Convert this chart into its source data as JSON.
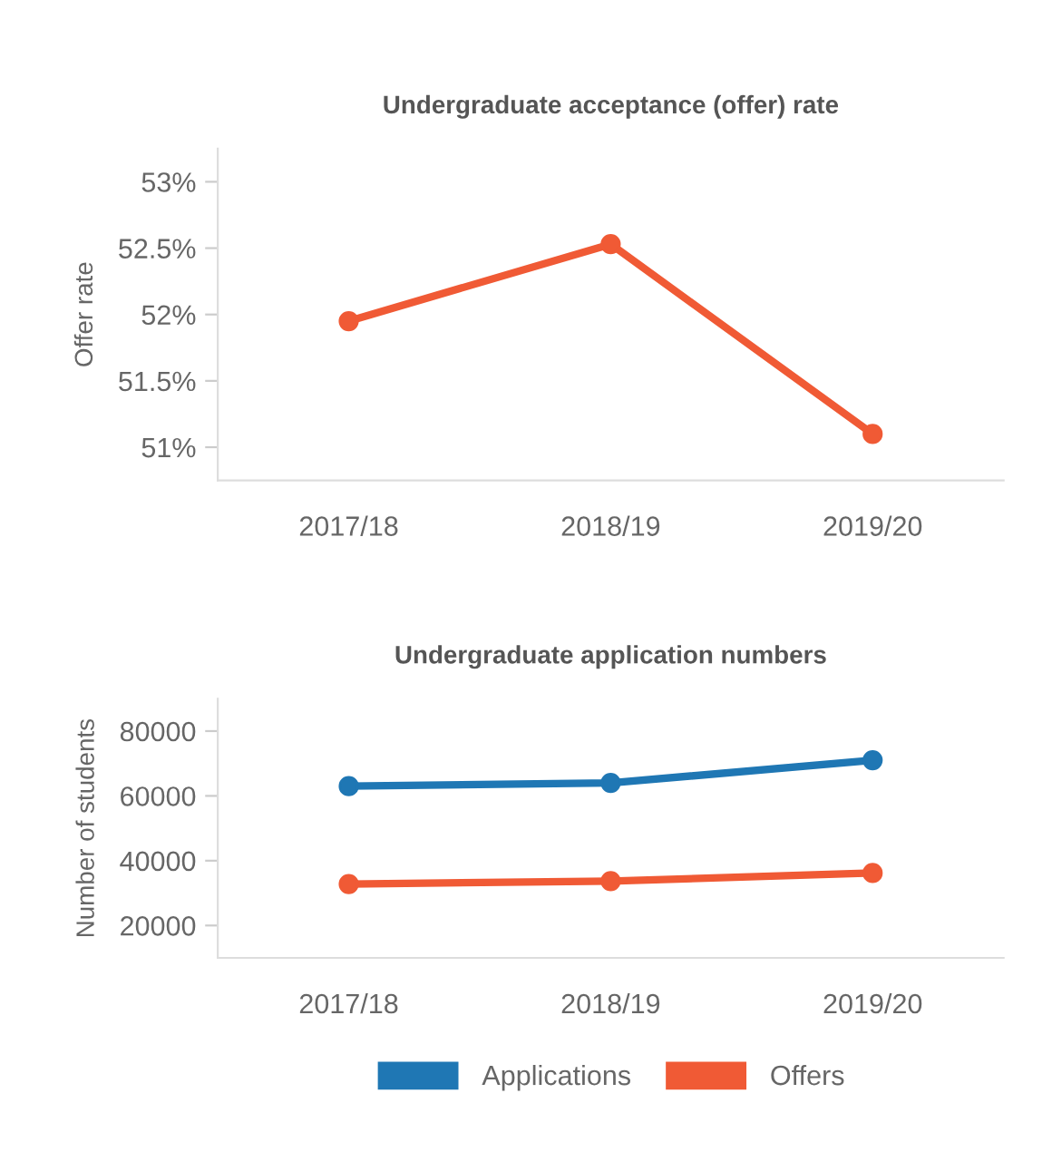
{
  "chart_data": [
    {
      "type": "line",
      "title": "Undergraduate acceptance (offer) rate",
      "ylabel": "Offer rate",
      "categories": [
        "2017/18",
        "2018/19",
        "2019/20"
      ],
      "series": [
        {
          "color": "#f05a35",
          "values": [
            51.95,
            52.53,
            51.1
          ]
        }
      ],
      "ylim": [
        50.75,
        53.25
      ],
      "yticks": [
        {
          "value": 51,
          "label": "51%"
        },
        {
          "value": 51.5,
          "label": "51.5%"
        },
        {
          "value": 52,
          "label": "52%"
        },
        {
          "value": 52.5,
          "label": "52.5%"
        },
        {
          "value": 53,
          "label": "53%"
        }
      ],
      "marker": "circle",
      "line_style": "solid",
      "grid": false,
      "legend": false
    },
    {
      "type": "line",
      "title": "Undergraduate application numbers",
      "ylabel": "Number of students",
      "categories": [
        "2017/18",
        "2018/19",
        "2019/20"
      ],
      "series": [
        {
          "name": "Applications",
          "color": "#1f77b4",
          "values": [
            63000,
            64000,
            71000
          ]
        },
        {
          "name": "Offers",
          "color": "#f05a35",
          "values": [
            32800,
            33700,
            36200
          ]
        }
      ],
      "ylim": [
        10000,
        90000
      ],
      "yticks": [
        20000,
        40000,
        60000,
        80000
      ],
      "marker": "circle",
      "line_style": "solid",
      "grid": false,
      "legend": "bottom"
    }
  ]
}
